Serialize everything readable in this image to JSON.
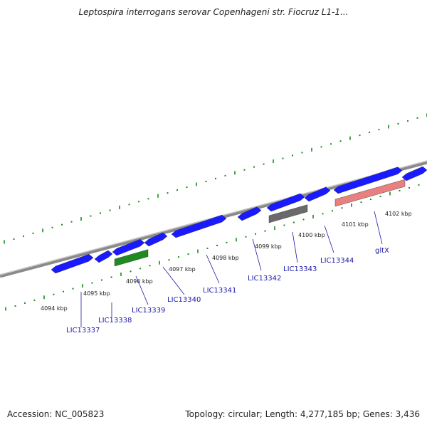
{
  "title": "Leptospira interrogans serovar Copenhageni str. Fiocruz L1-1...",
  "footer": {
    "accession": "Accession: NC_005823",
    "summary": "Topology: circular; Length: 4,277,185 bp; Genes: 3,436"
  },
  "colors": {
    "gene_forward": "#1a1aff",
    "gene_green": "#1f8a1f",
    "gene_grey": "#6a6a6a",
    "gene_pink": "#e88080",
    "backbone": "#8a8a8a",
    "ticks": "#1a8a1a",
    "label_text": "#1a1aa6"
  },
  "kbp_labels": [
    "4094 kbp",
    "4095 kbp",
    "4096 kbp",
    "4097 kbp",
    "4098 kbp",
    "4099 kbp",
    "4100 kbp",
    "4101 kbp",
    "4102 kbp"
  ],
  "gene_labels": [
    "LIC13337",
    "LIC13338",
    "LIC13339",
    "LIC13340",
    "LIC13341",
    "LIC13342",
    "LIC13343",
    "LIC13344",
    "gltX"
  ],
  "genes": [
    {
      "color_key": "gene_forward"
    },
    {
      "color_key": "gene_forward"
    },
    {
      "color_key": "gene_forward"
    },
    {
      "color_key": "gene_forward"
    },
    {
      "color_key": "gene_forward"
    },
    {
      "color_key": "gene_forward"
    },
    {
      "color_key": "gene_forward"
    },
    {
      "color_key": "gene_forward"
    },
    {
      "color_key": "gene_forward"
    },
    {
      "color_key": "gene_forward"
    },
    {
      "color_key": "gene_green"
    },
    {
      "color_key": "gene_grey"
    },
    {
      "color_key": "gene_pink"
    }
  ]
}
